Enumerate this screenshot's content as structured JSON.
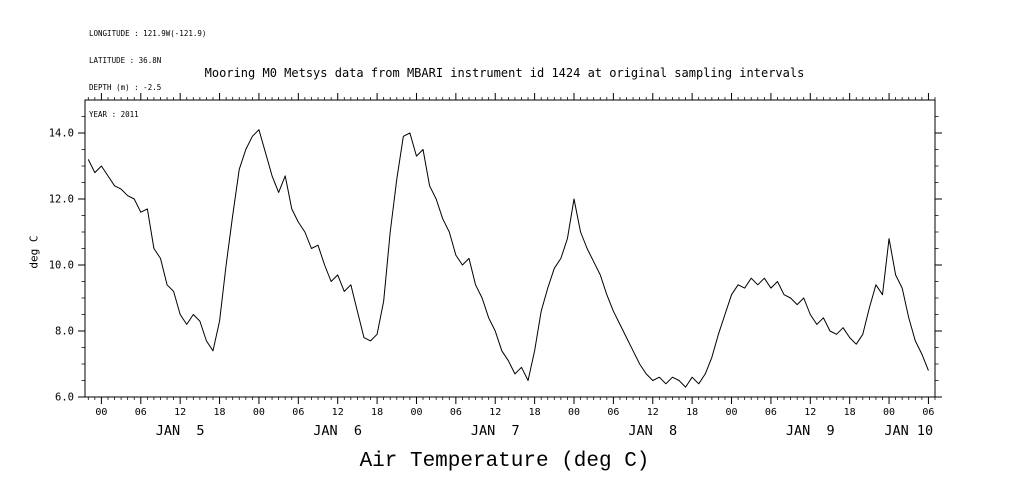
{
  "header": {
    "info_lines": [
      "LONGITUDE : 121.9W(-121.9)",
      "LATITUDE : 36.8N",
      "DEPTH (m) : -2.5",
      "YEAR : 2011"
    ],
    "title": "Mooring M0 Metsys data from MBARI instrument id 1424 at original sampling intervals"
  },
  "chart_data": {
    "type": "line",
    "title": "Air Temperature (deg C)",
    "ylabel": "deg C",
    "xlabel": "",
    "grid": false,
    "line_color": "#000000",
    "xlim": [
      -2.5,
      127
    ],
    "ylim": [
      6.0,
      15.0
    ],
    "x_unit": "hour of day, Jan 5 - Jan 10 2011",
    "x_major_ticks": [
      {
        "hour": 0,
        "label": "00"
      },
      {
        "hour": 6,
        "label": "06"
      },
      {
        "hour": 12,
        "label": "12"
      },
      {
        "hour": 18,
        "label": "18"
      },
      {
        "hour": 24,
        "label": "00"
      },
      {
        "hour": 30,
        "label": "06"
      },
      {
        "hour": 36,
        "label": "12"
      },
      {
        "hour": 42,
        "label": "18"
      },
      {
        "hour": 48,
        "label": "00"
      },
      {
        "hour": 54,
        "label": "06"
      },
      {
        "hour": 60,
        "label": "12"
      },
      {
        "hour": 66,
        "label": "18"
      },
      {
        "hour": 72,
        "label": "00"
      },
      {
        "hour": 78,
        "label": "06"
      },
      {
        "hour": 84,
        "label": "12"
      },
      {
        "hour": 90,
        "label": "18"
      },
      {
        "hour": 96,
        "label": "00"
      },
      {
        "hour": 102,
        "label": "06"
      },
      {
        "hour": 108,
        "label": "12"
      },
      {
        "hour": 114,
        "label": "18"
      },
      {
        "hour": 120,
        "label": "00"
      },
      {
        "hour": 126,
        "label": "06"
      }
    ],
    "x_minor_step_hours": 1,
    "day_labels": [
      {
        "hour": 12,
        "label": "JAN  5"
      },
      {
        "hour": 36,
        "label": "JAN  6"
      },
      {
        "hour": 60,
        "label": "JAN  7"
      },
      {
        "hour": 84,
        "label": "JAN  8"
      },
      {
        "hour": 108,
        "label": "JAN  9"
      },
      {
        "hour": 123,
        "label": "JAN 10"
      }
    ],
    "y_major_ticks": [
      {
        "value": 6.0,
        "label": "6.0"
      },
      {
        "value": 8.0,
        "label": "8.0"
      },
      {
        "value": 10.0,
        "label": "10.0"
      },
      {
        "value": 12.0,
        "label": "12.0"
      },
      {
        "value": 14.0,
        "label": "14.0"
      }
    ],
    "y_minor_step": 0.5,
    "series": [
      {
        "name": "Air Temperature (deg C)",
        "x_start_hour": -2,
        "x_step_hours": 1,
        "y_degC": [
          13.2,
          12.8,
          13.0,
          12.7,
          12.4,
          12.3,
          12.1,
          12.0,
          11.6,
          11.7,
          10.5,
          10.2,
          9.4,
          9.2,
          8.5,
          8.2,
          8.5,
          8.3,
          7.7,
          7.4,
          8.3,
          10.0,
          11.5,
          12.9,
          13.5,
          13.9,
          14.1,
          13.4,
          12.7,
          12.2,
          12.7,
          11.7,
          11.3,
          11.0,
          10.5,
          10.6,
          10.0,
          9.5,
          9.7,
          9.2,
          9.4,
          8.6,
          7.8,
          7.7,
          7.9,
          8.9,
          11.0,
          12.6,
          13.9,
          14.0,
          13.3,
          13.5,
          12.4,
          12.0,
          11.4,
          11.0,
          10.3,
          10.0,
          10.2,
          9.4,
          9.0,
          8.4,
          8.0,
          7.4,
          7.1,
          6.7,
          6.9,
          6.5,
          7.4,
          8.6,
          9.3,
          9.9,
          10.2,
          10.8,
          12.0,
          11.0,
          10.5,
          10.1,
          9.7,
          9.1,
          8.6,
          8.2,
          7.8,
          7.4,
          7.0,
          6.7,
          6.5,
          6.6,
          6.4,
          6.6,
          6.5,
          6.3,
          6.6,
          6.4,
          6.7,
          7.2,
          7.9,
          8.5,
          9.1,
          9.4,
          9.3,
          9.6,
          9.4,
          9.6,
          9.3,
          9.5,
          9.1,
          9.0,
          8.8,
          9.0,
          8.5,
          8.2,
          8.4,
          8.0,
          7.9,
          8.1,
          7.8,
          7.6,
          7.9,
          8.7,
          9.4,
          9.1,
          10.8,
          9.7,
          9.3,
          8.4,
          7.7,
          7.3,
          6.8
        ]
      }
    ]
  }
}
